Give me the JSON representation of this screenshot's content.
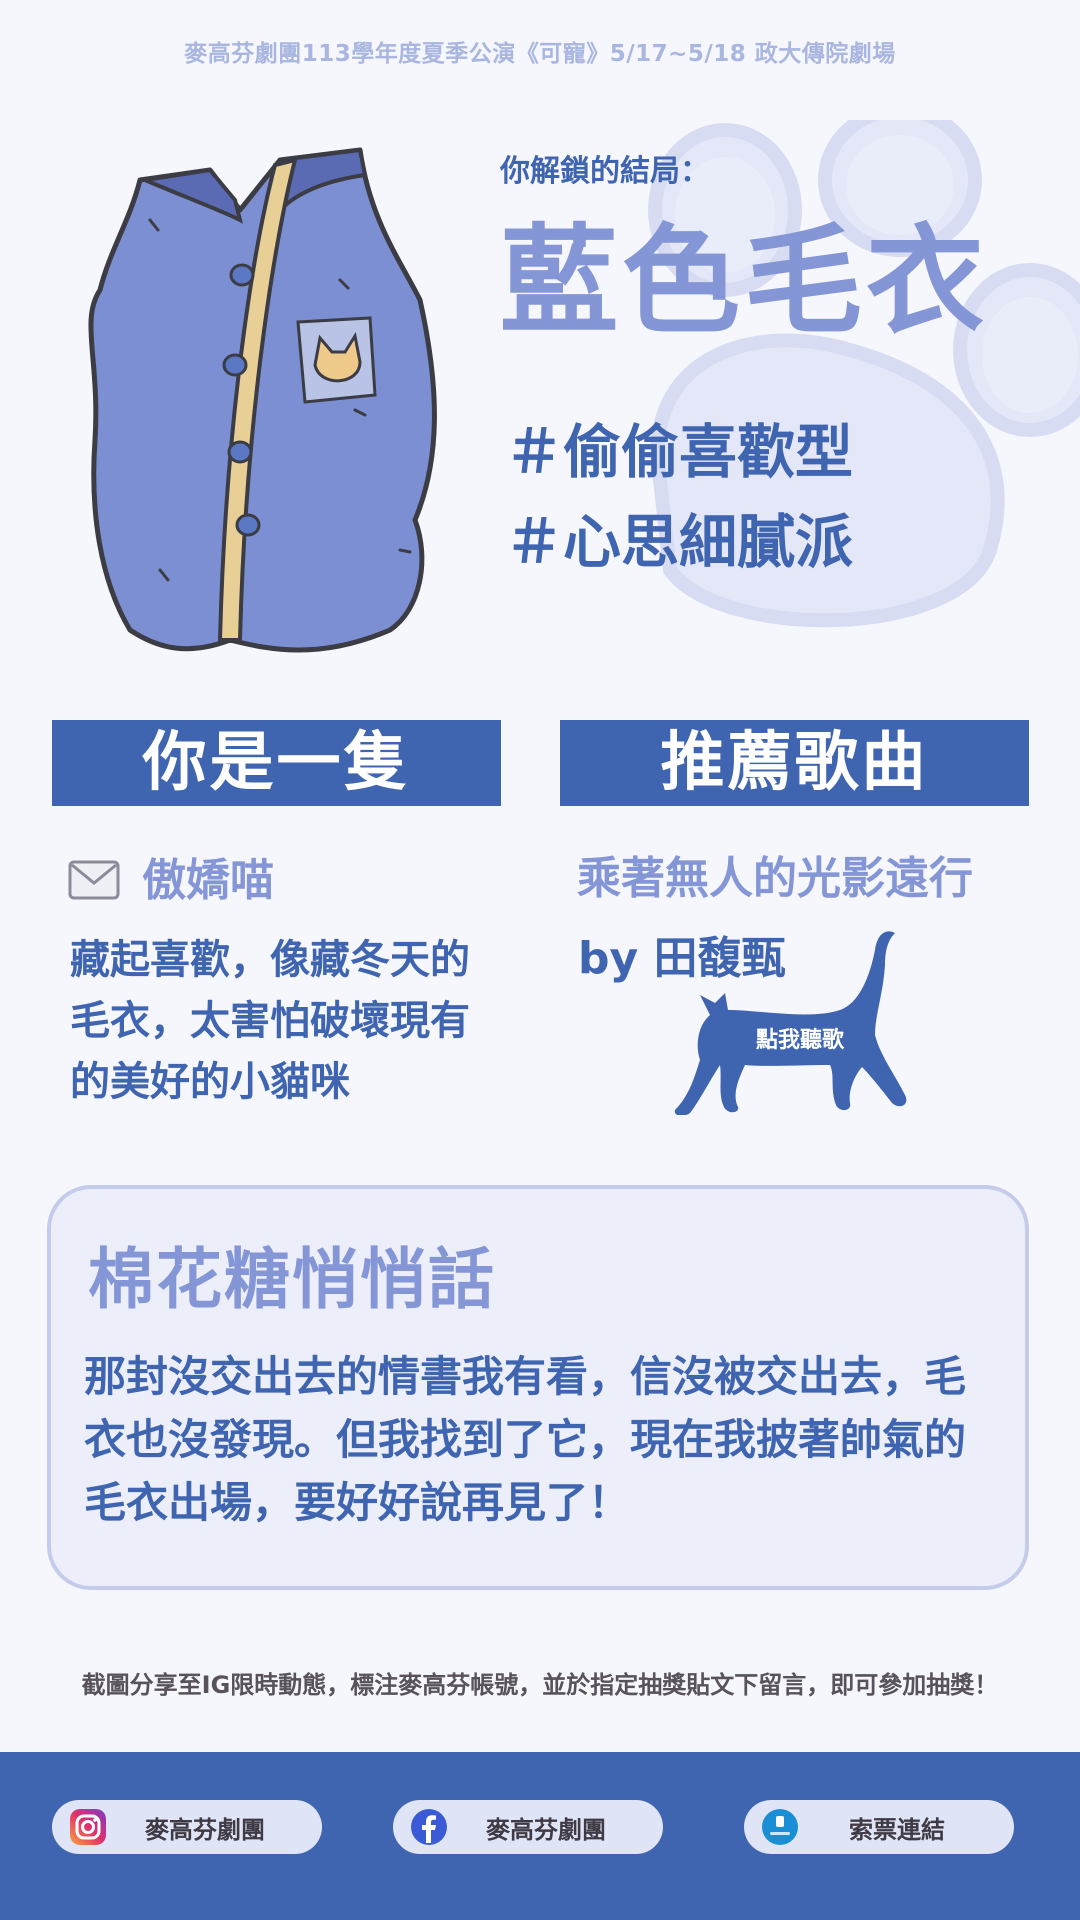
{
  "header": {
    "banner": "麥高芬劇團113學年度夏季公演《可寵》5/17~5/18 政大傳院劇場"
  },
  "result": {
    "unlock_label": "你解鎖的結局：",
    "ending_title": "藍色毛衣",
    "tags": [
      "＃偷偷喜歡型",
      "＃心思細膩派"
    ]
  },
  "left_section": {
    "header": "你是一隻",
    "cat_type": "傲嬌喵",
    "description": "藏起喜歡，像藏冬天的毛衣，太害怕破壞現有的美好的小貓咪"
  },
  "right_section": {
    "header": "推薦歌曲",
    "song_title": "乘著無人的光影遠行",
    "song_artist": "by 田馥甄",
    "listen_button": "點我聽歌"
  },
  "whisper": {
    "title": "棉花糖悄悄話",
    "text": "那封沒交出去的情書我有看，信沒被交出去，毛衣也沒發現。但我找到了它，現在我披著帥氣的毛衣出場，要好好說再見了！"
  },
  "share_note": "截圖分享至IG限時動態，標注麥高芬帳號，並於指定抽獎貼文下留言，即可參加抽獎！",
  "footer": {
    "instagram_label": "麥高芬劇團",
    "facebook_label": "麥高芬劇團",
    "ticket_label": "索票連結"
  },
  "colors": {
    "primary": "#4065b0",
    "accent": "#8596d6",
    "background": "#f6f7fd"
  }
}
